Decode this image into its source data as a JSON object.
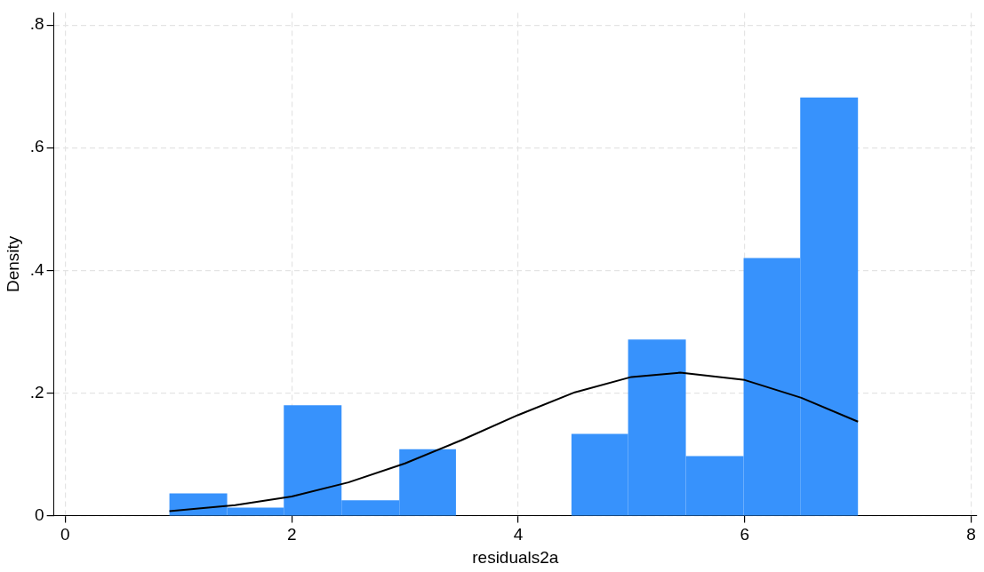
{
  "chart_data": {
    "type": "histogram",
    "xlabel": "residuals2a",
    "ylabel": "Density",
    "bins": [
      0.92,
      1.43,
      1.93,
      2.44,
      2.95,
      3.45,
      4.47,
      4.97,
      5.48,
      5.99,
      6.49,
      7.0
    ],
    "values": [
      0.036,
      0.013,
      0.18,
      0.025,
      0.108,
      0,
      0.133,
      0.287,
      0.097,
      0.42,
      0.682
    ],
    "color": "#3792fc",
    "series": [
      {
        "type": "line",
        "color": "#000000",
        "x": [
          0.92,
          1.5,
          2.0,
          2.5,
          3.0,
          3.5,
          4.0,
          4.5,
          5.0,
          5.43,
          6.0,
          6.5,
          7.0
        ],
        "values": [
          0.007,
          0.017,
          0.031,
          0.054,
          0.085,
          0.123,
          0.164,
          0.201,
          0.226,
          0.233,
          0.221,
          0.192,
          0.153
        ]
      }
    ],
    "xlim": [
      -0.1,
      8.05
    ],
    "xticks": [
      0,
      2,
      4,
      6,
      8
    ],
    "ylim": [
      0,
      0.82
    ],
    "yticks": [
      0,
      {
        "value": 0.2,
        "label": ".2"
      },
      {
        "value": 0.4,
        "label": ".4"
      },
      {
        "value": 0.6,
        "label": ".6"
      },
      {
        "value": 0.8,
        "label": ".8"
      }
    ],
    "grid": true,
    "legend": false
  }
}
